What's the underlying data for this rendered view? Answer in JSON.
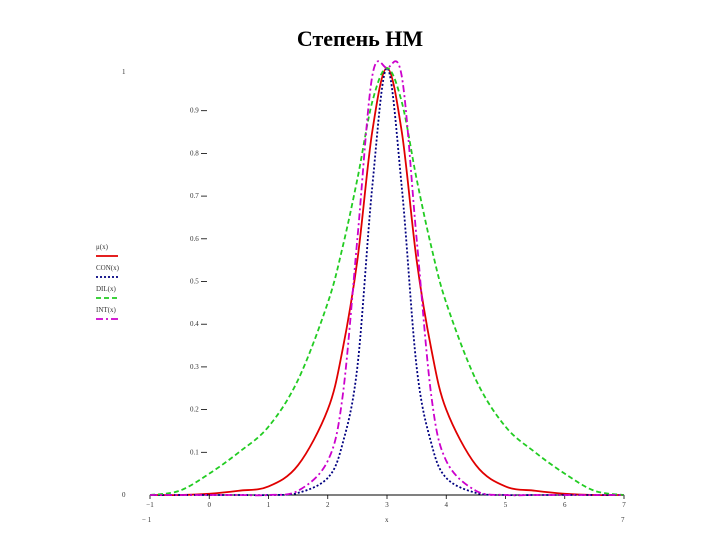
{
  "page_title": "Степень НМ",
  "chart_data": {
    "type": "line",
    "xlabel": "x",
    "xlim": [
      -1,
      7
    ],
    "ylim": [
      0,
      1
    ],
    "x_axis_ends": {
      "left": "− 1",
      "right": "7"
    },
    "y_axis_ends": {
      "top": "1",
      "bottom": "0"
    },
    "x_ticks": [
      {
        "v": -1,
        "t": "−1"
      },
      {
        "v": 0,
        "t": "0"
      },
      {
        "v": 1,
        "t": "1"
      },
      {
        "v": 2,
        "t": "2"
      },
      {
        "v": 3,
        "t": "3"
      },
      {
        "v": 4,
        "t": "4"
      },
      {
        "v": 5,
        "t": "5"
      },
      {
        "v": 6,
        "t": "6"
      },
      {
        "v": 7,
        "t": "7"
      }
    ],
    "y_ticks": [
      {
        "v": 0.1,
        "t": "0.1"
      },
      {
        "v": 0.2,
        "t": "0.2"
      },
      {
        "v": 0.3,
        "t": "0.3"
      },
      {
        "v": 0.4,
        "t": "0.4"
      },
      {
        "v": 0.5,
        "t": "0.5"
      },
      {
        "v": 0.6,
        "t": "0.6"
      },
      {
        "v": 0.7,
        "t": "0.7"
      },
      {
        "v": 0.8,
        "t": "0.8"
      },
      {
        "v": 0.9,
        "t": "0.9"
      }
    ],
    "legend_position": "left",
    "grid": false,
    "series": [
      {
        "name": "μ(x)",
        "color": "#e00000",
        "dash": "",
        "x": [
          -1,
          -0.5,
          0,
          0.5,
          1,
          1.5,
          2,
          2.25,
          2.5,
          2.75,
          3,
          3.25,
          3.5,
          3.75,
          4,
          4.5,
          5,
          5.5,
          6,
          6.5,
          7
        ],
        "y": [
          0,
          0,
          0.003,
          0.01,
          0.02,
          0.07,
          0.2,
          0.34,
          0.55,
          0.85,
          1.0,
          0.85,
          0.55,
          0.34,
          0.2,
          0.07,
          0.02,
          0.01,
          0.003,
          0,
          0
        ]
      },
      {
        "name": "CON(x)",
        "color": "#000080",
        "dash": "2,2",
        "x": [
          -1,
          -0.5,
          0,
          0.5,
          1,
          1.5,
          2,
          2.25,
          2.5,
          2.75,
          3,
          3.25,
          3.5,
          3.75,
          4,
          4.5,
          5,
          5.5,
          6,
          6.5,
          7
        ],
        "y": [
          0,
          0,
          0,
          0,
          0,
          0.005,
          0.04,
          0.12,
          0.3,
          0.72,
          1.0,
          0.72,
          0.3,
          0.12,
          0.04,
          0.005,
          0,
          0,
          0,
          0,
          0
        ]
      },
      {
        "name": "DIL(x)",
        "color": "#22cc22",
        "dash": "5,3",
        "x": [
          -1,
          -0.5,
          0,
          0.5,
          1,
          1.5,
          2,
          2.25,
          2.5,
          2.75,
          3,
          3.25,
          3.5,
          3.75,
          4,
          4.5,
          5,
          5.5,
          6,
          6.5,
          7
        ],
        "y": [
          0,
          0.01,
          0.05,
          0.1,
          0.16,
          0.27,
          0.45,
          0.58,
          0.74,
          0.92,
          1.0,
          0.92,
          0.74,
          0.58,
          0.45,
          0.27,
          0.16,
          0.1,
          0.05,
          0.01,
          0
        ]
      },
      {
        "name": "INT(x)",
        "color": "#cc00cc",
        "dash": "7,3,2,3",
        "x": [
          -1,
          -0.5,
          0,
          0.5,
          1,
          1.5,
          2,
          2.25,
          2.5,
          2.75,
          3,
          3.25,
          3.5,
          3.75,
          4,
          4.5,
          5,
          5.5,
          6,
          6.5,
          7
        ],
        "y": [
          0,
          0,
          0,
          0,
          0,
          0.01,
          0.08,
          0.23,
          0.6,
          0.98,
          1.0,
          0.98,
          0.6,
          0.23,
          0.08,
          0.01,
          0,
          0,
          0,
          0,
          0
        ]
      }
    ]
  }
}
